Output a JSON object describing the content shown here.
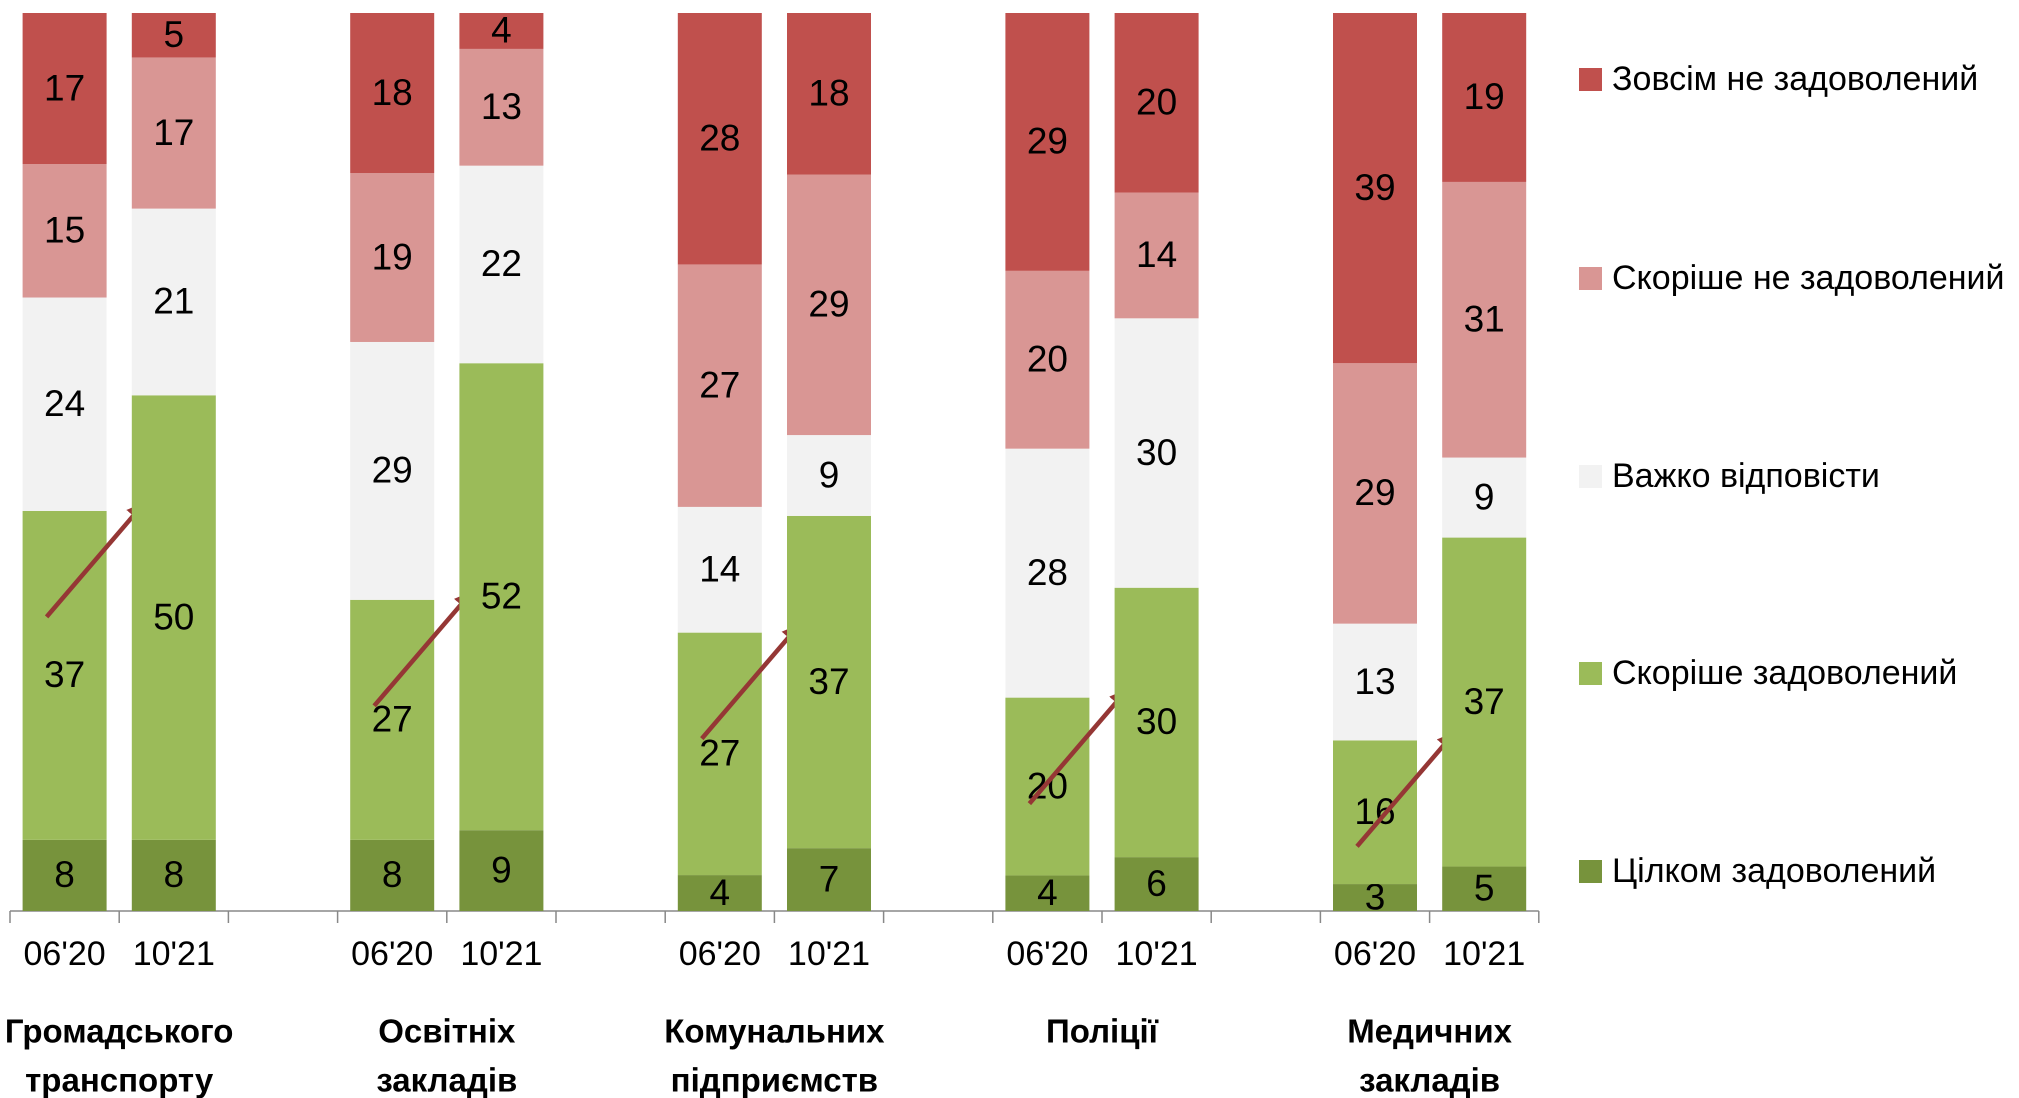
{
  "chart_data": {
    "type": "bar",
    "stacked": true,
    "groups": [
      [
        "Громадського",
        "транспорту"
      ],
      [
        "Освітніх",
        "закладів"
      ],
      [
        "Комунальних",
        "підприємств"
      ],
      [
        "Поліції"
      ],
      [
        "Медичних",
        "закладів"
      ]
    ],
    "categories": [
      "06'20",
      "10'21",
      "06'20",
      "10'21",
      "06'20",
      "10'21",
      "06'20",
      "10'21",
      "06'20",
      "10'21"
    ],
    "series": [
      {
        "name": "Цілком задоволений",
        "color": "#77933c",
        "values": [
          8,
          8,
          8,
          9,
          4,
          7,
          4,
          6,
          3,
          5
        ]
      },
      {
        "name": "Скоріше задоволений",
        "color": "#9bbb59",
        "values": [
          37,
          50,
          27,
          52,
          27,
          37,
          20,
          30,
          16,
          37
        ]
      },
      {
        "name": "Важко відповісти",
        "color": "#f2f2f2",
        "values": [
          24,
          21,
          29,
          22,
          14,
          9,
          28,
          30,
          13,
          9
        ]
      },
      {
        "name": "Скоріше не задоволений",
        "color": "#d99694",
        "values": [
          15,
          17,
          19,
          13,
          27,
          29,
          20,
          14,
          29,
          31
        ]
      },
      {
        "name": "Зовсім не задоволений",
        "color": "#c0504d",
        "values": [
          17,
          5,
          18,
          4,
          28,
          18,
          29,
          20,
          39,
          19
        ]
      }
    ],
    "legend": "right"
  }
}
